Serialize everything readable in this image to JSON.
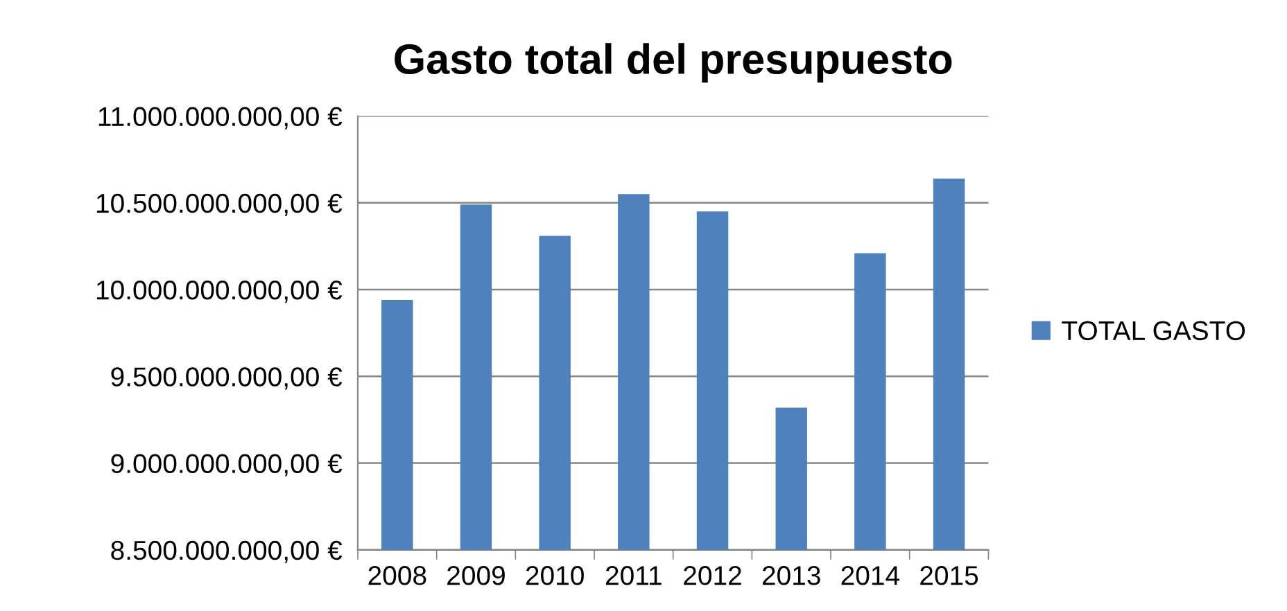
{
  "chart_data": {
    "type": "bar",
    "title": "Gasto total del presupuesto",
    "categories": [
      "2008",
      "2009",
      "2010",
      "2011",
      "2012",
      "2013",
      "2014",
      "2015"
    ],
    "series": [
      {
        "name": "TOTAL GASTO",
        "color": "#4f81bd",
        "values": [
          9940000000,
          10490000000,
          10310000000,
          10550000000,
          10450000000,
          9320000000,
          10210000000,
          10640000000
        ]
      }
    ],
    "ylim": [
      8500000000,
      11000000000
    ],
    "yticks": [
      {
        "value": 8500000000,
        "label": "8.500.000.000,00 €"
      },
      {
        "value": 9000000000,
        "label": "9.000.000.000,00 €"
      },
      {
        "value": 9500000000,
        "label": "9.500.000.000,00 €"
      },
      {
        "value": 10000000000,
        "label": "10.000.000.000,00 €"
      },
      {
        "value": 10500000000,
        "label": "10.500.000.000,00 €"
      },
      {
        "value": 11000000000,
        "label": "11.000.000.000,00 €"
      }
    ],
    "grid": "y",
    "legend": "right"
  }
}
